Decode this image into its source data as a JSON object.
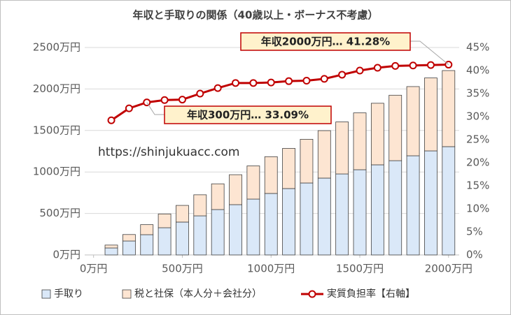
{
  "chart_data": {
    "type": "bar",
    "title": "年収と手取りの関係（40歳以上・ボーナス不考慮）",
    "x": [
      100,
      200,
      300,
      400,
      500,
      600,
      700,
      800,
      900,
      1000,
      1100,
      1200,
      1300,
      1400,
      1500,
      1600,
      1700,
      1800,
      1900,
      2000
    ],
    "series": [
      {
        "name": "手取り",
        "type": "bar",
        "color": "#dae8f8",
        "values": [
          84,
          168,
          244,
          328,
          396,
          471,
          547,
          606,
          673,
          741,
          800,
          867,
          926,
          976,
          1027,
          1086,
          1136,
          1195,
          1254,
          1305
        ]
      },
      {
        "name": "税と社保（本人分＋会社分）",
        "type": "bar",
        "color": "#fde5d2",
        "values": [
          35,
          78,
          121,
          166,
          201,
          254,
          310,
          361,
          400,
          443,
          484,
          527,
          572,
          627,
          685,
          742,
          789,
          834,
          879,
          917
        ]
      },
      {
        "name": "実質負担率【右軸】",
        "type": "line",
        "axis": "y2",
        "color": "#c00000",
        "values": [
          29.2,
          31.8,
          33.09,
          33.6,
          33.7,
          35.0,
          36.2,
          37.3,
          37.3,
          37.4,
          37.7,
          37.8,
          38.2,
          39.1,
          40.0,
          40.6,
          41.0,
          41.1,
          41.2,
          41.28
        ]
      }
    ],
    "xlim": [
      -50,
      2060
    ],
    "xticks": [
      {
        "value": 0,
        "label": "0万円"
      },
      {
        "value": 500,
        "label": "500万円"
      },
      {
        "value": 1000,
        "label": "1000万円"
      },
      {
        "value": 1500,
        "label": "1500万円"
      },
      {
        "value": 2000,
        "label": "2000万円"
      }
    ],
    "ylim": [
      0,
      2500
    ],
    "yticks": [
      {
        "value": 0,
        "label": "0万円"
      },
      {
        "value": 500,
        "label": "500万円"
      },
      {
        "value": 1000,
        "label": "1000万円"
      },
      {
        "value": 1500,
        "label": "1500万円"
      },
      {
        "value": 2000,
        "label": "2000万円"
      },
      {
        "value": 2500,
        "label": "2500万円"
      }
    ],
    "y2lim": [
      0,
      45
    ],
    "y2ticks": [
      {
        "value": 0,
        "label": "0%"
      },
      {
        "value": 5,
        "label": "5%"
      },
      {
        "value": 10,
        "label": "10%"
      },
      {
        "value": 15,
        "label": "15%"
      },
      {
        "value": 20,
        "label": "20%"
      },
      {
        "value": 25,
        "label": "25%"
      },
      {
        "value": 30,
        "label": "30%"
      },
      {
        "value": 35,
        "label": "35%"
      },
      {
        "value": 40,
        "label": "40%"
      },
      {
        "value": 45,
        "label": "45%"
      }
    ],
    "grid": true,
    "legend": "bottom",
    "annotations": [
      "年収2000万円… 41.28%",
      "年収300万円… 33.09%"
    ],
    "watermark": "https://shinjukuacc.com"
  }
}
